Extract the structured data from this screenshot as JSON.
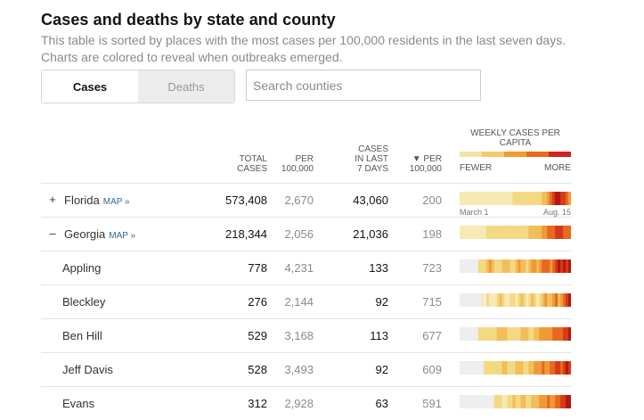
{
  "header": {
    "title": "Cases and deaths by state and county",
    "subtitle": "This table is sorted by places with the most cases per 100,000 residents in the last seven days. Charts are colored to reveal when outbreaks emerged."
  },
  "tabs": [
    {
      "label": "Cases",
      "active": true
    },
    {
      "label": "Deaths",
      "active": false
    }
  ],
  "search": {
    "placeholder": "Search counties",
    "value": ""
  },
  "columns": {
    "total_cases": "TOTAL\nCASES",
    "per_100k": "PER\n100,000",
    "cases_7d": "CASES\nIN LAST\n7 DAYS",
    "per_100k_7d": "▼ PER\n100,000"
  },
  "legend": {
    "title": "WEEKLY CASES PER CAPITA",
    "fewer": "FEWER",
    "more": "MORE",
    "colors": [
      "#f3e3a4",
      "#f3c96a",
      "#f39c2d",
      "#ea6a1a",
      "#d4231a"
    ]
  },
  "colors": {
    "c0": "#eeeeee",
    "c1": "#f6e9b2",
    "c2": "#f3d982",
    "c3": "#f2bd5a",
    "c4": "#ef9a36",
    "c5": "#e9681f",
    "c6": "#d63a18",
    "c7": "#b4170f"
  },
  "rows": [
    {
      "type": "state",
      "toggle": "+",
      "name": "Florida",
      "map": "MAP »",
      "total": "573,408",
      "per100k": "2,670",
      "cases7": "43,060",
      "per7": "200",
      "weeks": [
        1,
        1,
        1,
        1,
        1,
        1,
        1,
        1,
        1,
        1,
        1,
        1,
        1,
        1,
        1,
        1,
        1,
        1,
        1,
        1,
        2,
        2,
        2,
        2,
        2,
        2,
        2,
        2,
        2,
        2,
        2,
        3,
        3,
        4,
        5,
        6,
        7,
        7,
        6,
        6,
        5,
        4
      ],
      "start_label": "March 1",
      "end_label": "Aug. 15"
    },
    {
      "type": "state",
      "toggle": "–",
      "name": "Georgia",
      "map": "MAP »",
      "total": "218,344",
      "per100k": "2,056",
      "cases7": "21,036",
      "per7": "198",
      "weeks": [
        1,
        1,
        1,
        1,
        1,
        1,
        1,
        1,
        1,
        1,
        2,
        2,
        2,
        2,
        2,
        2,
        2,
        2,
        2,
        2,
        2,
        2,
        2,
        2,
        2,
        2,
        3,
        3,
        3,
        3,
        3,
        4,
        4,
        5,
        5,
        5,
        6,
        6,
        6,
        5,
        5,
        5
      ]
    },
    {
      "type": "county",
      "name": "Appling",
      "total": "778",
      "per100k": "4,231",
      "cases7": "133",
      "per7": "723",
      "weeks": [
        0,
        0,
        0,
        0,
        0,
        0,
        0,
        2,
        2,
        2,
        3,
        4,
        3,
        2,
        2,
        2,
        3,
        3,
        3,
        2,
        2,
        3,
        4,
        3,
        3,
        2,
        3,
        4,
        4,
        3,
        4,
        5,
        5,
        5,
        4,
        5,
        6,
        7,
        6,
        7,
        6,
        7
      ]
    },
    {
      "type": "county",
      "name": "Bleckley",
      "total": "276",
      "per100k": "2,144",
      "cases7": "92",
      "per7": "715",
      "weeks": [
        0,
        0,
        0,
        0,
        0,
        0,
        0,
        0,
        1,
        0,
        2,
        1,
        1,
        1,
        2,
        3,
        2,
        1,
        1,
        2,
        2,
        1,
        2,
        3,
        2,
        1,
        2,
        3,
        2,
        1,
        2,
        3,
        4,
        3,
        3,
        4,
        5,
        3,
        4,
        5,
        6,
        7
      ]
    },
    {
      "type": "county",
      "name": "Ben Hill",
      "total": "529",
      "per100k": "3,168",
      "cases7": "113",
      "per7": "677",
      "weeks": [
        0,
        0,
        0,
        0,
        0,
        0,
        0,
        2,
        2,
        2,
        2,
        2,
        2,
        2,
        3,
        3,
        3,
        3,
        2,
        2,
        2,
        2,
        2,
        3,
        3,
        3,
        2,
        2,
        3,
        3,
        4,
        4,
        4,
        4,
        4,
        5,
        5,
        5,
        5,
        6,
        6,
        7
      ]
    },
    {
      "type": "county",
      "name": "Jeff Davis",
      "total": "528",
      "per100k": "3,493",
      "cases7": "92",
      "per7": "609",
      "weeks": [
        0,
        0,
        0,
        0,
        0,
        0,
        0,
        0,
        0,
        2,
        2,
        2,
        2,
        2,
        2,
        2,
        3,
        3,
        2,
        2,
        2,
        3,
        3,
        3,
        2,
        2,
        3,
        3,
        4,
        4,
        4,
        5,
        4,
        4,
        5,
        5,
        6,
        6,
        5,
        6,
        7,
        6
      ]
    },
    {
      "type": "county",
      "name": "Evans",
      "total": "312",
      "per100k": "2,928",
      "cases7": "63",
      "per7": "591",
      "weeks": [
        0,
        0,
        0,
        0,
        0,
        0,
        0,
        0,
        0,
        0,
        0,
        0,
        0,
        2,
        2,
        2,
        1,
        1,
        2,
        2,
        3,
        2,
        2,
        3,
        3,
        2,
        2,
        3,
        3,
        3,
        4,
        4,
        4,
        5,
        4,
        4,
        5,
        5,
        6,
        6,
        7,
        7
      ]
    }
  ]
}
